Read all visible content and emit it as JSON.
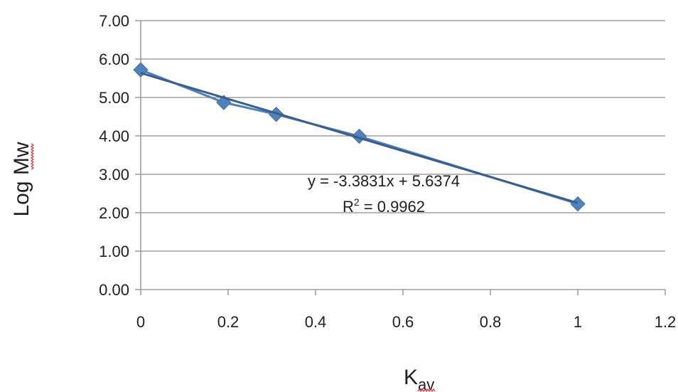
{
  "chart_data": {
    "type": "scatter",
    "title": "",
    "xlabel": "K",
    "xlabel_subscript": "av",
    "ylabel": "Log Mw",
    "xlim": [
      0,
      1.2
    ],
    "ylim": [
      0,
      7
    ],
    "x_ticks": [
      "0",
      "0.2",
      "0.4",
      "0.6",
      "0.8",
      "1",
      "1.2"
    ],
    "y_ticks": [
      "0.00",
      "1.00",
      "2.00",
      "3.00",
      "4.00",
      "5.00",
      "6.00",
      "7.00"
    ],
    "grid": "horizontal",
    "legend": "none",
    "series": [
      {
        "x": [
          0,
          0.19,
          0.31,
          0.5,
          1
        ],
        "y": [
          5.72,
          4.87,
          4.56,
          3.99,
          2.23
        ],
        "color": "#4f81bd",
        "marker": "diamond",
        "connect": true
      }
    ],
    "trendline": {
      "type": "linear",
      "slope": -3.3831,
      "intercept": 5.6374,
      "color": "#3a5e8c",
      "equation_label": "y = -3.3831x + 5.6374",
      "r2_label_prefix": "R",
      "r2_label_sup": "2",
      "r2_label_value": " = 0.9962"
    }
  }
}
